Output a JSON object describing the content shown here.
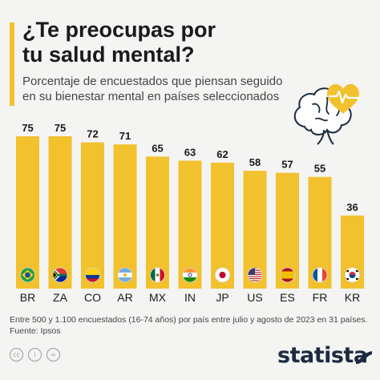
{
  "header": {
    "title": "¿Te preocupas por\ntu salud mental?",
    "subtitle": "Porcentaje de encuestados que piensan seguido\nen su bienestar mental en países seleccionados"
  },
  "icons": {
    "illustration": "brain-heart-icon",
    "footer": [
      "cc-icon",
      "info-icon",
      "equals-icon"
    ],
    "brand_mark": "statista-wave-icon"
  },
  "colors": {
    "bar": "#f2c12e",
    "accent": "#f2c12e",
    "text": "#1a1a1a",
    "brand": "#1d2b40"
  },
  "chart_data": {
    "type": "bar",
    "categories": [
      "BR",
      "ZA",
      "CO",
      "AR",
      "MX",
      "IN",
      "JP",
      "US",
      "ES",
      "FR",
      "KR"
    ],
    "values": [
      75,
      75,
      72,
      71,
      65,
      63,
      62,
      58,
      57,
      55,
      36
    ],
    "title": "¿Te preocupas por tu salud mental?",
    "xlabel": "",
    "ylabel": "",
    "ylim": [
      0,
      80
    ],
    "grid": false,
    "legend": "none",
    "data_labels": true,
    "flags": [
      "brazil-flag-icon",
      "south-africa-flag-icon",
      "colombia-flag-icon",
      "argentina-flag-icon",
      "mexico-flag-icon",
      "india-flag-icon",
      "japan-flag-icon",
      "usa-flag-icon",
      "spain-flag-icon",
      "france-flag-icon",
      "south-korea-flag-icon"
    ]
  },
  "footer": {
    "note": "Entre 500 y 1.100 encuestados (16-74 años) por país entre julio y agosto de 2023 en 31 países.",
    "source": "Fuente: Ipsos",
    "brand": "statista",
    "footer_icon_glyphs": [
      "cc",
      "i",
      "="
    ]
  }
}
